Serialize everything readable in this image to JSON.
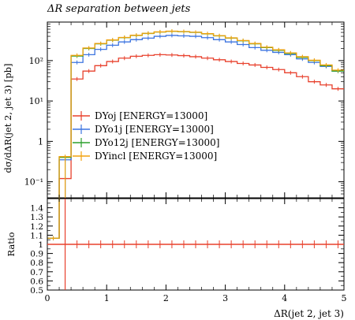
{
  "chart_data": [
    {
      "type": "line",
      "title": "ΔR separation between jets",
      "ylabel": "dσ/dΔR(jet 2, jet 3) [pb]",
      "xlabel": "",
      "y_scale": "log",
      "xlim": [
        0,
        5
      ],
      "ylim": [
        0.04,
        900
      ],
      "y_ticks": [
        {
          "value": 0.1,
          "label": "10⁻¹"
        },
        {
          "value": 1,
          "label": "1"
        },
        {
          "value": 10,
          "label": "10¹"
        },
        {
          "value": 100,
          "label": "10²"
        }
      ],
      "bin_edges": [
        0.0,
        0.2,
        0.4,
        0.6,
        0.8,
        1.0,
        1.2,
        1.4,
        1.6,
        1.8,
        2.0,
        2.2,
        2.4,
        2.6,
        2.8,
        3.0,
        3.2,
        3.4,
        3.6,
        3.8,
        4.0,
        4.2,
        4.4,
        4.6,
        4.8,
        5.0
      ],
      "legend_position": "center-left",
      "series": [
        {
          "name": "DYoj [ENERGY=13000]",
          "color": "#e8402c",
          "values": [
            0.0001,
            0.12,
            35,
            55,
            75,
            95,
            115,
            128,
            135,
            140,
            138,
            133,
            125,
            115,
            105,
            95,
            85,
            78,
            68,
            60,
            50,
            40,
            30,
            25,
            20
          ]
        },
        {
          "name": "DYo1j [ENERGY=13000]",
          "color": "#3c74e0",
          "values": [
            0.0001,
            0.35,
            90,
            140,
            190,
            240,
            290,
            330,
            360,
            400,
            420,
            410,
            400,
            370,
            330,
            290,
            250,
            210,
            180,
            160,
            140,
            110,
            90,
            72,
            55
          ]
        },
        {
          "name": "DYo12j [ENERGY=13000]",
          "color": "#2ca02c",
          "values": [
            0.0001,
            0.4,
            130,
            200,
            260,
            320,
            370,
            420,
            470,
            510,
            530,
            520,
            500,
            460,
            410,
            360,
            310,
            260,
            210,
            180,
            150,
            120,
            100,
            75,
            55
          ]
        },
        {
          "name": "DYincl [ENERGY=13000]",
          "color": "#f2a20f",
          "values": [
            0.0001,
            0.42,
            135,
            205,
            265,
            325,
            375,
            425,
            475,
            515,
            535,
            525,
            505,
            465,
            415,
            365,
            315,
            265,
            215,
            185,
            155,
            125,
            102,
            78,
            58
          ]
        }
      ]
    },
    {
      "type": "line",
      "title": "",
      "ylabel": "Ratio",
      "xlabel": "ΔR(jet 2, jet 3)",
      "xlim": [
        0,
        5
      ],
      "ylim": [
        0.5,
        1.5
      ],
      "x_ticks": [
        0,
        1,
        2,
        3,
        4,
        5
      ],
      "y_ticks": [
        0.5,
        0.6,
        0.7,
        0.8,
        0.9,
        1,
        1.1,
        1.2,
        1.3,
        1.4
      ],
      "series": [
        {
          "name": "",
          "color": "#e8402c",
          "value": 1.0
        }
      ]
    }
  ]
}
